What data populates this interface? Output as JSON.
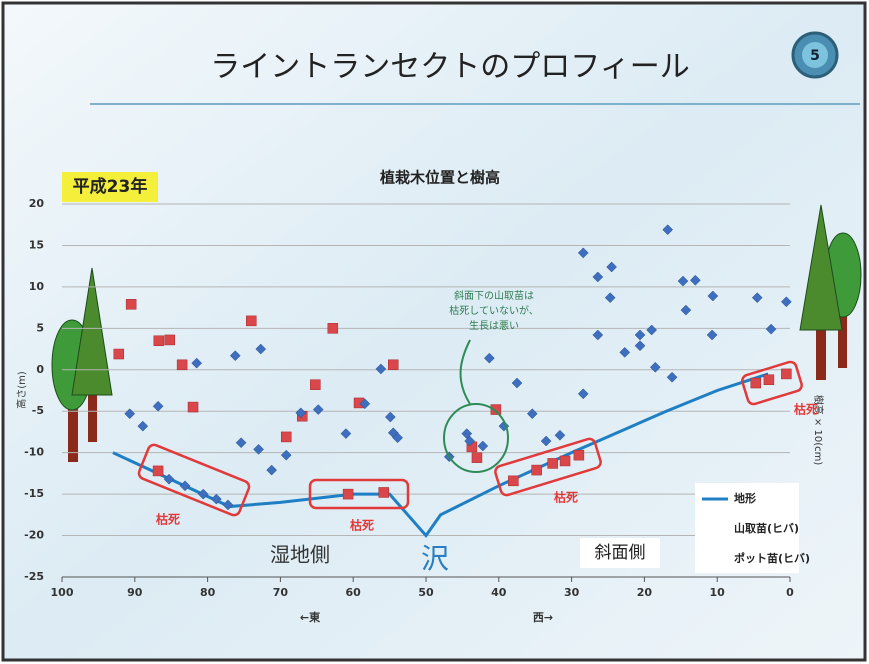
{
  "slide": {
    "title": "ライントランセクトのプロフィール",
    "number": 5
  },
  "chart_data": {
    "type": "scatter",
    "title": "植栽木位置と樹高",
    "year_label": "平成23年",
    "xlim": [
      100,
      0
    ],
    "ylim": [
      -25,
      20
    ],
    "xticks": [
      100,
      90,
      80,
      70,
      60,
      50,
      40,
      30,
      20,
      10,
      0
    ],
    "yticks": [
      -25,
      -20,
      -15,
      -10,
      -5,
      0,
      5,
      10,
      15,
      20
    ],
    "grid": true,
    "ylabel": "高さ(m)",
    "y2label": "樹高 × 10(cm)",
    "x_direction_labels": [
      "←東",
      "西→"
    ],
    "region_labels": [
      "湿地側",
      "沢",
      "斜面側"
    ],
    "dead_labels": [
      "枯死",
      "枯死",
      "枯死",
      "枯死"
    ],
    "callout": [
      "斜面下の山取苗は",
      "枯死していないが、",
      "生長は悪い"
    ],
    "series": [
      {
        "name": "地形",
        "color": "#1f7fc4",
        "mark": "line",
        "x": [
          93,
          77,
          70,
          60,
          55,
          50,
          48,
          40,
          30,
          17,
          10,
          3
        ],
        "values": [
          -10,
          -16.5,
          -16,
          -15,
          -15,
          -20,
          -17.5,
          -14,
          -10,
          -5,
          -2.5,
          -0.5
        ]
      },
      {
        "name": "山取苗(ヒバ)",
        "color": "#d9474b",
        "mark": "square",
        "x": [
          90.5,
          92.2,
          86.7,
          85.2,
          83.5,
          82,
          74,
          69.2,
          67,
          65.2,
          62.8,
          59.2,
          54.5,
          40.4,
          43.7,
          43,
          86.8,
          38,
          34.8,
          32.6,
          30.9,
          29,
          60.7,
          55.8,
          4.7,
          2.9,
          0.5
        ],
        "values": [
          7.9,
          1.9,
          3.5,
          3.6,
          0.6,
          -4.5,
          5.9,
          -8.1,
          -5.6,
          -1.8,
          5,
          -4,
          0.6,
          -4.8,
          -9.3,
          -10.6,
          -12.2,
          -13.4,
          -12.1,
          -11.3,
          -11,
          -10.3,
          -15,
          -14.8,
          -1.6,
          -1.2,
          -0.5
        ]
      },
      {
        "name": "ポット苗(ヒバ)",
        "color": "#3e6fbf",
        "mark": "diamond",
        "x": [
          90.7,
          88.9,
          86.8,
          81.5,
          76.2,
          75.4,
          73,
          72.7,
          71.2,
          69.2,
          67.2,
          64.8,
          61,
          58.4,
          56.2,
          54.9,
          54.5,
          53.9,
          46.8,
          44.4,
          41.3,
          39.3,
          37.5,
          35.4,
          33.5,
          31.6,
          28.4,
          28.4,
          26.4,
          24.5,
          24.7,
          26.4,
          22.7,
          20.6,
          20.6,
          19,
          18.5,
          16.8,
          16.2,
          14.7,
          13,
          14.3,
          10.6,
          10.7,
          4.5,
          2.6,
          0.5,
          85.3,
          83.1,
          80.6,
          78.8,
          77.2,
          44,
          42.2
        ],
        "values": [
          -5.3,
          -6.8,
          -4.4,
          0.8,
          1.7,
          -8.8,
          -9.6,
          2.5,
          -12.1,
          -10.3,
          -5.2,
          -4.8,
          -7.7,
          -4.1,
          0.1,
          -5.7,
          -7.6,
          -8.2,
          -10.5,
          -7.7,
          1.4,
          -6.8,
          -1.6,
          -5.3,
          -8.6,
          -7.9,
          -2.9,
          14.1,
          11.2,
          12.4,
          8.7,
          4.2,
          2.1,
          4.2,
          2.9,
          4.8,
          0.3,
          16.9,
          -0.9,
          10.7,
          10.8,
          7.2,
          8.9,
          4.2,
          8.7,
          4.9,
          8.2,
          -13.2,
          -14,
          -15,
          -15.6,
          -16.3,
          -8.6,
          -9.2
        ]
      }
    ]
  }
}
